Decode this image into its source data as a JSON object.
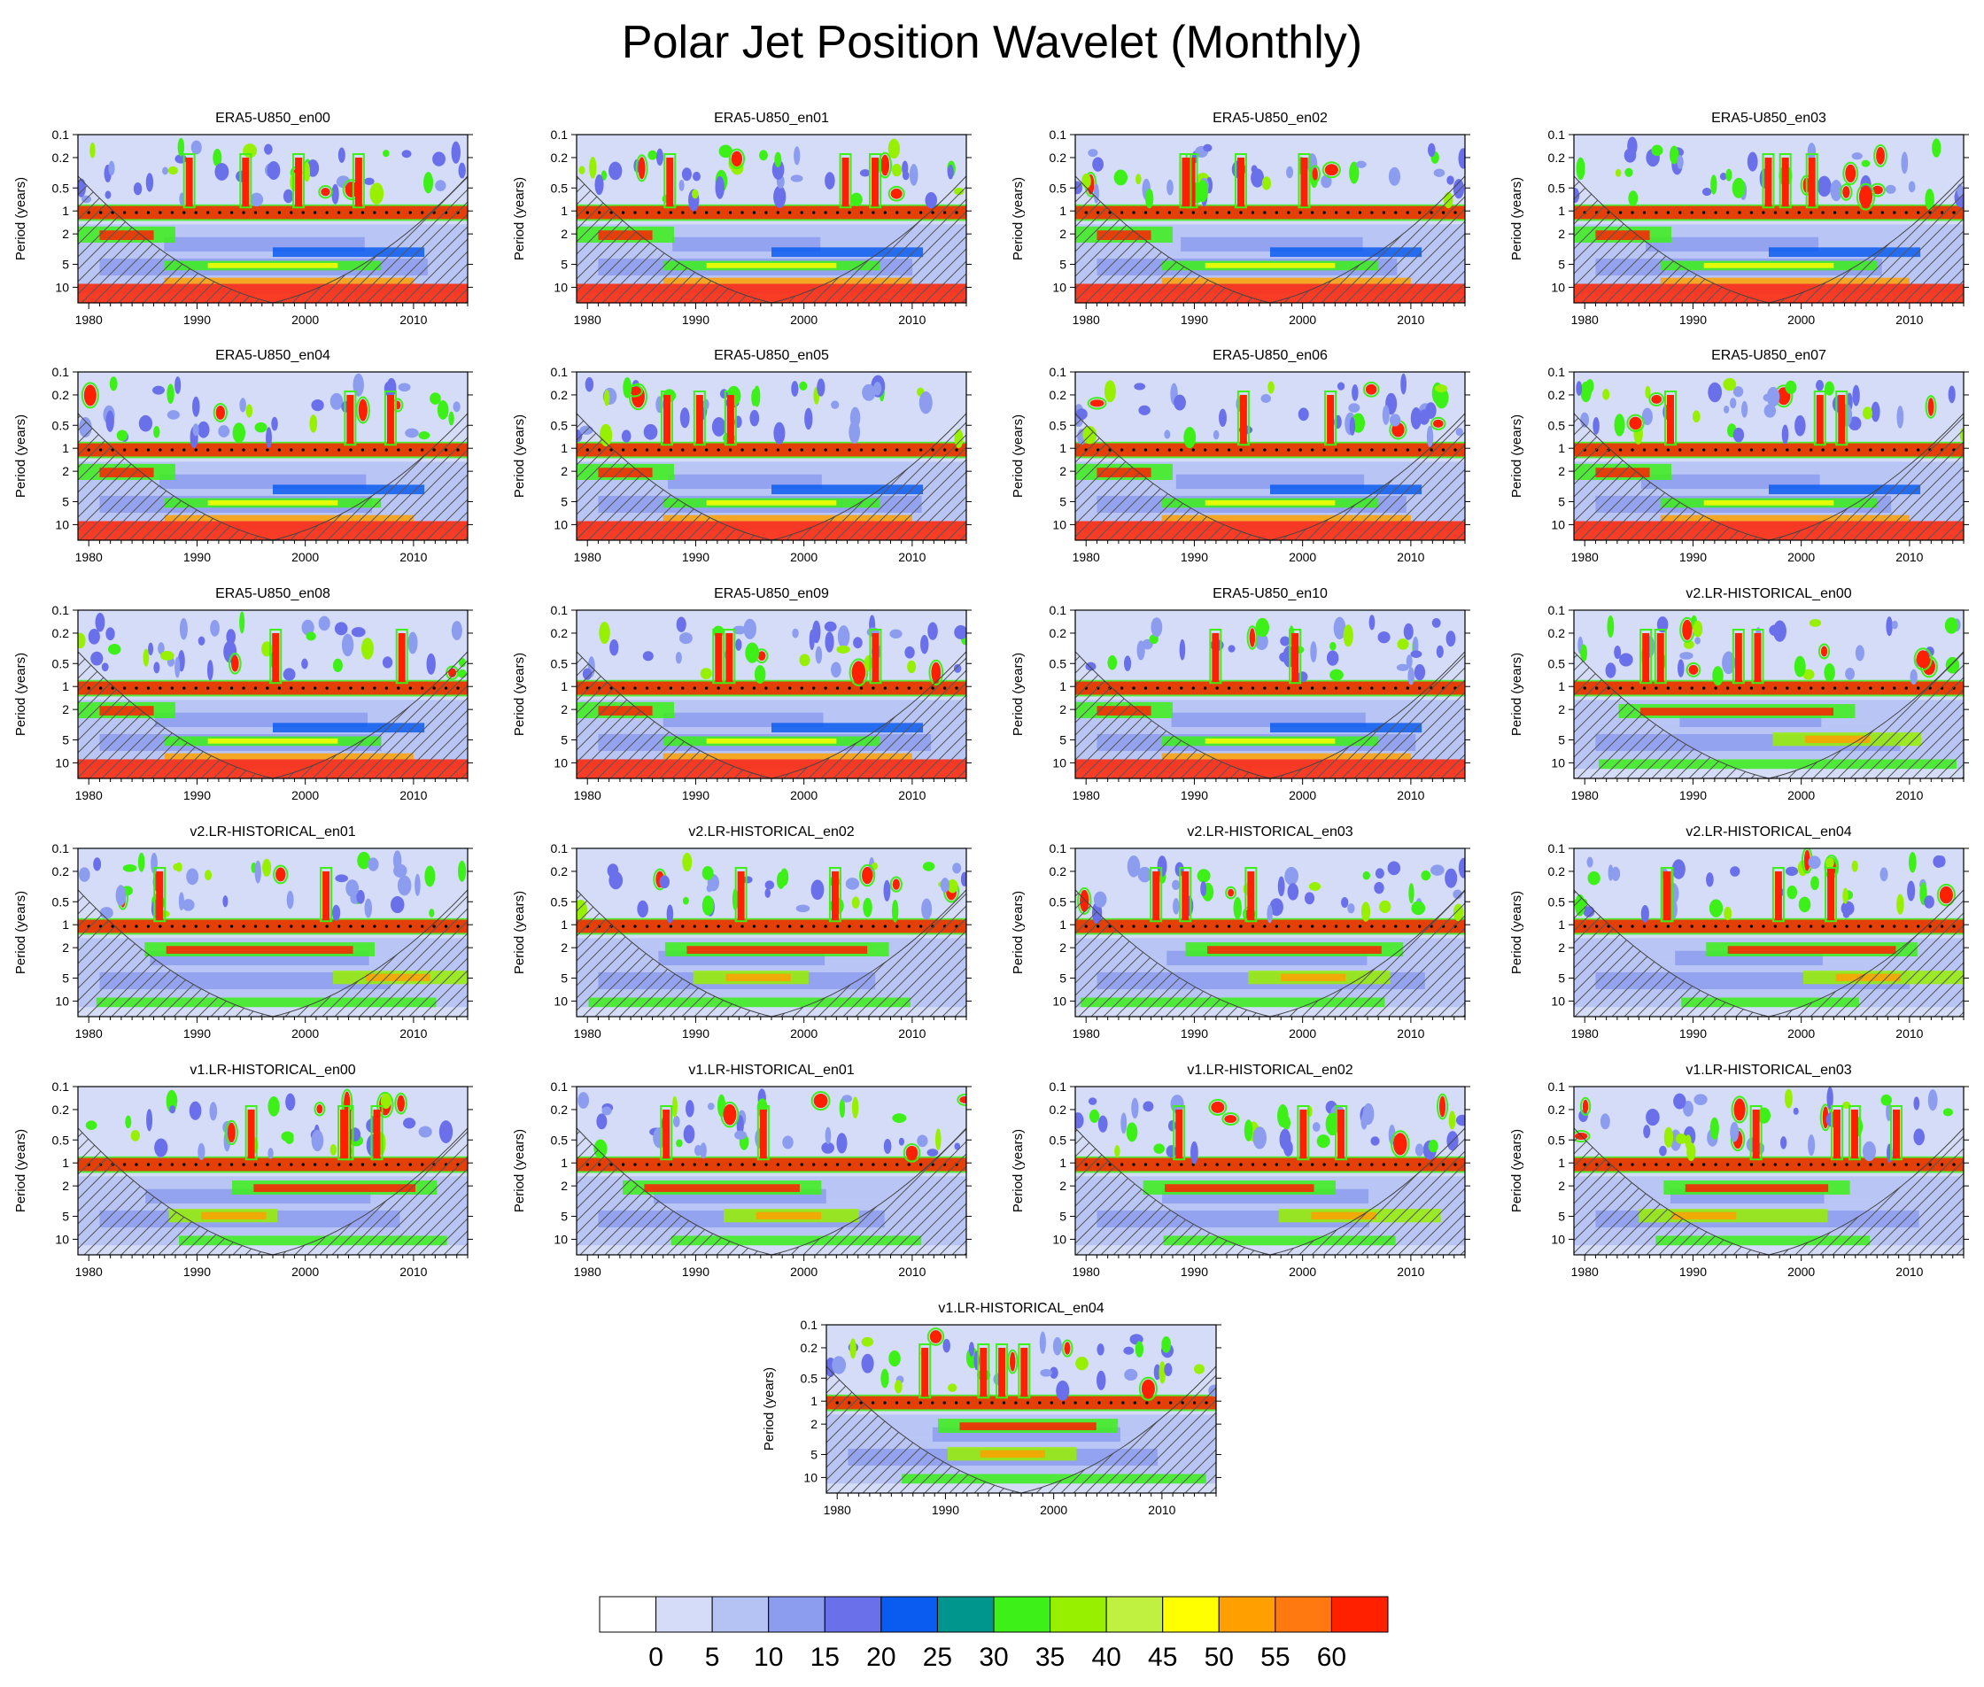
{
  "figure": {
    "title": "Polar Jet Position Wavelet (Monthly)"
  },
  "chart_data": {
    "type": "heatmap",
    "title": "Polar Jet Position Wavelet (Monthly)",
    "ylabel": "Period (years)",
    "xlim": [
      1979,
      2015
    ],
    "x_ticks": [
      1980,
      1990,
      2000,
      2010
    ],
    "y_scale": "log",
    "ylim": [
      0.1,
      16
    ],
    "y_ticks": [
      0.1,
      0.2,
      0.5,
      1,
      2,
      5,
      10
    ],
    "y_tick_labels": [
      "0.1",
      "0.2",
      "0.5",
      "1",
      "2",
      "5",
      "10"
    ],
    "colorbar": {
      "levels": [
        0,
        5,
        10,
        15,
        20,
        25,
        30,
        35,
        40,
        45,
        50,
        55,
        60
      ],
      "labels": [
        "0",
        "5",
        "10",
        "15",
        "20",
        "25",
        "30",
        "35",
        "40",
        "45",
        "50",
        "55",
        "60"
      ],
      "colors": [
        "#ffffff",
        "#d4dcf8",
        "#b4c2f4",
        "#8c9cee",
        "#6a70ea",
        "#0a5cf0",
        "#00968e",
        "#3cf018",
        "#96f000",
        "#c0f040",
        "#ffff00",
        "#ffa000",
        "#ff7810",
        "#ff2000"
      ]
    },
    "panels": [
      {
        "title": "ERA5-U850_en00"
      },
      {
        "title": "ERA5-U850_en01"
      },
      {
        "title": "ERA5-U850_en02"
      },
      {
        "title": "ERA5-U850_en03"
      },
      {
        "title": "ERA5-U850_en04"
      },
      {
        "title": "ERA5-U850_en05"
      },
      {
        "title": "ERA5-U850_en06"
      },
      {
        "title": "ERA5-U850_en07"
      },
      {
        "title": "ERA5-U850_en08"
      },
      {
        "title": "ERA5-U850_en09"
      },
      {
        "title": "ERA5-U850_en10"
      },
      {
        "title": "v2.LR-HISTORICAL_en00"
      },
      {
        "title": "v2.LR-HISTORICAL_en01"
      },
      {
        "title": "v2.LR-HISTORICAL_en02"
      },
      {
        "title": "v2.LR-HISTORICAL_en03"
      },
      {
        "title": "v2.LR-HISTORICAL_en04"
      },
      {
        "title": "v1.LR-HISTORICAL_en00"
      },
      {
        "title": "v1.LR-HISTORICAL_en01"
      },
      {
        "title": "v1.LR-HISTORICAL_en02"
      },
      {
        "title": "v1.LR-HISTORICAL_en03"
      },
      {
        "title": "v1.LR-HISTORICAL_en04"
      }
    ]
  }
}
